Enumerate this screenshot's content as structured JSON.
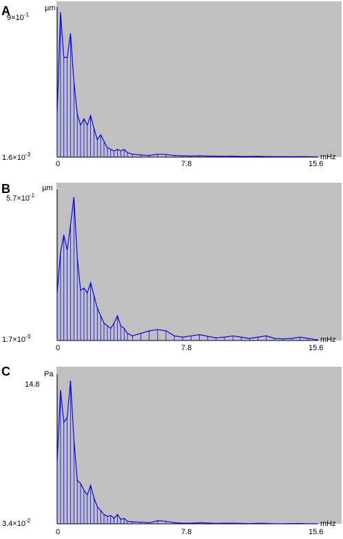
{
  "colors": {
    "plot_bg": "#c0c0c0",
    "series": "#0000ff",
    "axis": "#000000"
  },
  "chart_data": [
    {
      "type": "line",
      "panel_label": "A",
      "unit_label": "µm",
      "y_max_label": {
        "mantissa": "9×10",
        "exponent": "-1"
      },
      "y_min_label": {
        "mantissa": "1.6×10",
        "exponent": "-3"
      },
      "x_unit_label": "mHz",
      "x_ticks": [
        "0",
        "7.8",
        "15.6"
      ],
      "xlim": [
        0,
        15.6
      ],
      "ylim": [
        0.0016,
        0.9
      ],
      "vertical_stems": true,
      "series": [
        {
          "x": [
            0.0,
            0.2,
            0.4,
            0.6,
            0.8,
            1.0,
            1.2,
            1.4,
            1.6,
            1.8,
            2.0,
            2.2,
            2.4,
            2.6,
            2.8,
            3.0,
            3.2,
            3.4,
            3.6,
            3.8,
            4.0,
            4.2,
            4.5,
            5.0,
            5.5,
            6.0,
            6.5,
            7.0,
            7.5,
            8.0,
            8.5,
            9.0,
            9.5,
            10.0,
            10.5,
            11.0,
            11.5,
            12.0,
            12.5,
            13.0,
            13.5,
            14.0,
            14.5,
            15.0,
            15.6
          ],
          "values": [
            0.27,
            0.9,
            0.62,
            0.62,
            0.77,
            0.47,
            0.27,
            0.2,
            0.24,
            0.2,
            0.26,
            0.18,
            0.11,
            0.14,
            0.1,
            0.06,
            0.05,
            0.04,
            0.05,
            0.04,
            0.05,
            0.03,
            0.02,
            0.015,
            0.012,
            0.02,
            0.018,
            0.012,
            0.01,
            0.009,
            0.01,
            0.008,
            0.008,
            0.007,
            0.008,
            0.006,
            0.006,
            0.007,
            0.005,
            0.005,
            0.005,
            0.004,
            0.005,
            0.004,
            0.003
          ]
        }
      ]
    },
    {
      "type": "line",
      "panel_label": "B",
      "unit_label": "µm",
      "y_max_label": {
        "mantissa": "5.7×10",
        "exponent": "-1"
      },
      "y_min_label": {
        "mantissa": "1.7×10",
        "exponent": "-3"
      },
      "x_unit_label": "mHz",
      "x_ticks": [
        "0",
        "7.8",
        "15.6"
      ],
      "xlim": [
        0,
        15.6
      ],
      "ylim": [
        0.0017,
        0.57
      ],
      "vertical_stems": true,
      "series": [
        {
          "x": [
            0.0,
            0.2,
            0.4,
            0.6,
            0.8,
            1.0,
            1.2,
            1.4,
            1.6,
            1.8,
            2.0,
            2.2,
            2.4,
            2.6,
            2.8,
            3.0,
            3.2,
            3.4,
            3.6,
            3.8,
            4.0,
            4.2,
            4.5,
            5.0,
            5.5,
            6.0,
            6.5,
            7.0,
            7.5,
            8.0,
            8.5,
            9.0,
            9.5,
            10.0,
            10.5,
            11.0,
            11.5,
            12.0,
            12.5,
            13.0,
            13.5,
            14.0,
            14.5,
            15.0,
            15.6
          ],
          "values": [
            0.19,
            0.35,
            0.42,
            0.36,
            0.46,
            0.57,
            0.33,
            0.2,
            0.21,
            0.19,
            0.23,
            0.18,
            0.13,
            0.1,
            0.07,
            0.06,
            0.05,
            0.07,
            0.1,
            0.06,
            0.05,
            0.03,
            0.02,
            0.03,
            0.04,
            0.045,
            0.04,
            0.02,
            0.015,
            0.02,
            0.025,
            0.018,
            0.012,
            0.015,
            0.02,
            0.015,
            0.01,
            0.015,
            0.02,
            0.01,
            0.008,
            0.01,
            0.015,
            0.01,
            0.004
          ]
        }
      ]
    },
    {
      "type": "line",
      "panel_label": "C",
      "unit_label": "Pa",
      "y_max_label": {
        "mantissa": "14.8",
        "exponent": ""
      },
      "y_min_label": {
        "mantissa": "3.4×10",
        "exponent": "-2"
      },
      "x_unit_label": "mHz",
      "x_ticks": [
        "0",
        "7.8",
        "15.6"
      ],
      "xlim": [
        0,
        15.6
      ],
      "ylim": [
        0.034,
        14.8
      ],
      "vertical_stems": true,
      "series": [
        {
          "x": [
            0.0,
            0.2,
            0.4,
            0.6,
            0.8,
            1.0,
            1.2,
            1.4,
            1.6,
            1.8,
            2.0,
            2.2,
            2.4,
            2.6,
            2.8,
            3.0,
            3.2,
            3.4,
            3.6,
            3.8,
            4.0,
            4.2,
            4.5,
            5.0,
            5.5,
            6.0,
            6.5,
            7.0,
            7.5,
            8.0,
            8.5,
            9.0,
            9.5,
            10.0,
            10.5,
            11.0,
            11.5,
            12.0,
            12.5,
            13.0,
            13.5,
            14.0,
            14.5,
            15.0,
            15.6
          ],
          "values": [
            6.5,
            13.8,
            10.5,
            11.0,
            14.8,
            8.7,
            4.5,
            4.2,
            3.5,
            3.0,
            4.0,
            2.7,
            1.8,
            1.4,
            1.0,
            0.8,
            0.9,
            0.6,
            1.0,
            0.5,
            0.6,
            0.3,
            0.25,
            0.2,
            0.15,
            0.35,
            0.3,
            0.15,
            0.1,
            0.1,
            0.15,
            0.12,
            0.08,
            0.1,
            0.1,
            0.08,
            0.06,
            0.09,
            0.08,
            0.05,
            0.05,
            0.06,
            0.07,
            0.05,
            0.04
          ]
        }
      ]
    }
  ]
}
